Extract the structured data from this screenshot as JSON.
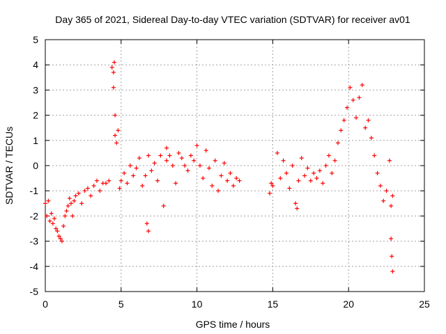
{
  "chart_data": {
    "type": "scatter",
    "title": "Day 365 of 2021, Sidereal Day-to-day VTEC variation (SDTVAR) for receiver av01",
    "xlabel": "GPS time / hours",
    "ylabel": "SDTVAR / TECUs",
    "xlim": [
      0,
      25
    ],
    "ylim": [
      -5,
      5
    ],
    "x_ticks": [
      0,
      5,
      10,
      15,
      20,
      25
    ],
    "y_ticks": [
      -5,
      -4,
      -3,
      -2,
      -1,
      0,
      1,
      2,
      3,
      4,
      5
    ],
    "x_tick_labels": [
      "0",
      "5",
      "10",
      "15",
      "20",
      "25"
    ],
    "y_tick_labels": [
      "-5",
      "-4",
      "-3",
      "-2",
      "-1",
      "0",
      "1",
      "2",
      "3",
      "4",
      "5"
    ],
    "grid": true,
    "marker": "+",
    "color": "#ff0000",
    "series": [
      {
        "name": "SDTVAR",
        "x": [
          0.0,
          0.1,
          0.2,
          0.3,
          0.4,
          0.5,
          0.6,
          0.7,
          0.8,
          0.9,
          1.0,
          1.1,
          1.2,
          1.3,
          1.4,
          1.5,
          1.6,
          1.7,
          1.8,
          1.9,
          2.0,
          2.2,
          2.4,
          2.6,
          2.8,
          3.0,
          3.2,
          3.4,
          3.6,
          3.8,
          4.0,
          4.2,
          4.4,
          4.5,
          4.5,
          4.55,
          4.6,
          4.6,
          4.7,
          4.8,
          4.9,
          5.0,
          5.2,
          5.4,
          5.6,
          5.8,
          6.0,
          6.2,
          6.4,
          6.6,
          6.8,
          6.7,
          6.8,
          7.0,
          7.2,
          7.4,
          7.6,
          7.8,
          8.0,
          8.0,
          8.2,
          8.4,
          8.6,
          8.8,
          9.0,
          9.2,
          9.4,
          9.6,
          9.8,
          10.0,
          10.2,
          10.4,
          10.6,
          10.8,
          11.0,
          11.2,
          11.4,
          11.6,
          11.8,
          12.0,
          12.2,
          12.4,
          12.6,
          12.8,
          14.8,
          14.9,
          15.0,
          15.3,
          15.5,
          15.7,
          15.9,
          16.1,
          16.3,
          16.5,
          16.6,
          16.7,
          16.9,
          17.1,
          17.3,
          17.5,
          17.7,
          17.9,
          18.1,
          18.3,
          18.5,
          18.7,
          18.9,
          19.1,
          19.3,
          19.5,
          19.7,
          19.9,
          20.1,
          20.3,
          20.5,
          20.7,
          20.9,
          21.1,
          21.3,
          21.5,
          21.7,
          21.9,
          22.1,
          22.3,
          22.5,
          22.7,
          22.8,
          22.9,
          22.8,
          22.85,
          22.9
        ],
        "y": [
          -1.5,
          -2.0,
          -1.4,
          -2.2,
          -1.9,
          -2.3,
          -2.1,
          -2.5,
          -2.6,
          -2.8,
          -2.9,
          -3.0,
          -2.4,
          -2.0,
          -1.8,
          -1.6,
          -1.3,
          -1.5,
          -2.0,
          -1.4,
          -1.2,
          -1.1,
          -1.5,
          -1.0,
          -0.9,
          -1.2,
          -0.8,
          -0.6,
          -1.0,
          -0.7,
          -0.7,
          -0.6,
          3.9,
          3.1,
          3.7,
          4.1,
          2.0,
          1.2,
          0.9,
          1.4,
          -0.9,
          -0.6,
          -0.3,
          -0.7,
          0.0,
          -0.4,
          -0.1,
          0.3,
          -0.8,
          -0.4,
          0.4,
          -2.3,
          -2.6,
          -0.2,
          0.1,
          -0.6,
          0.4,
          -1.6,
          0.2,
          0.7,
          0.4,
          0.0,
          -0.7,
          0.5,
          0.3,
          0.0,
          -0.2,
          0.4,
          0.2,
          0.8,
          0.0,
          -0.5,
          0.6,
          -0.1,
          -0.8,
          0.2,
          -1.0,
          -0.4,
          0.1,
          -0.6,
          -0.3,
          -0.8,
          -0.5,
          -0.6,
          -1.1,
          -0.7,
          -0.8,
          0.5,
          -0.5,
          0.2,
          -0.3,
          -0.9,
          0.0,
          -1.5,
          -1.7,
          -0.6,
          0.3,
          -0.4,
          -0.1,
          -0.6,
          -0.3,
          -0.5,
          -0.2,
          -0.7,
          0.0,
          0.4,
          -0.3,
          0.2,
          0.9,
          1.4,
          1.8,
          2.3,
          3.1,
          2.6,
          1.9,
          2.7,
          3.2,
          1.5,
          1.8,
          1.1,
          0.4,
          -0.3,
          -0.8,
          -1.4,
          -1.0,
          0.2,
          -1.6,
          -1.2,
          -2.9,
          -3.6,
          -4.2
        ]
      }
    ]
  }
}
